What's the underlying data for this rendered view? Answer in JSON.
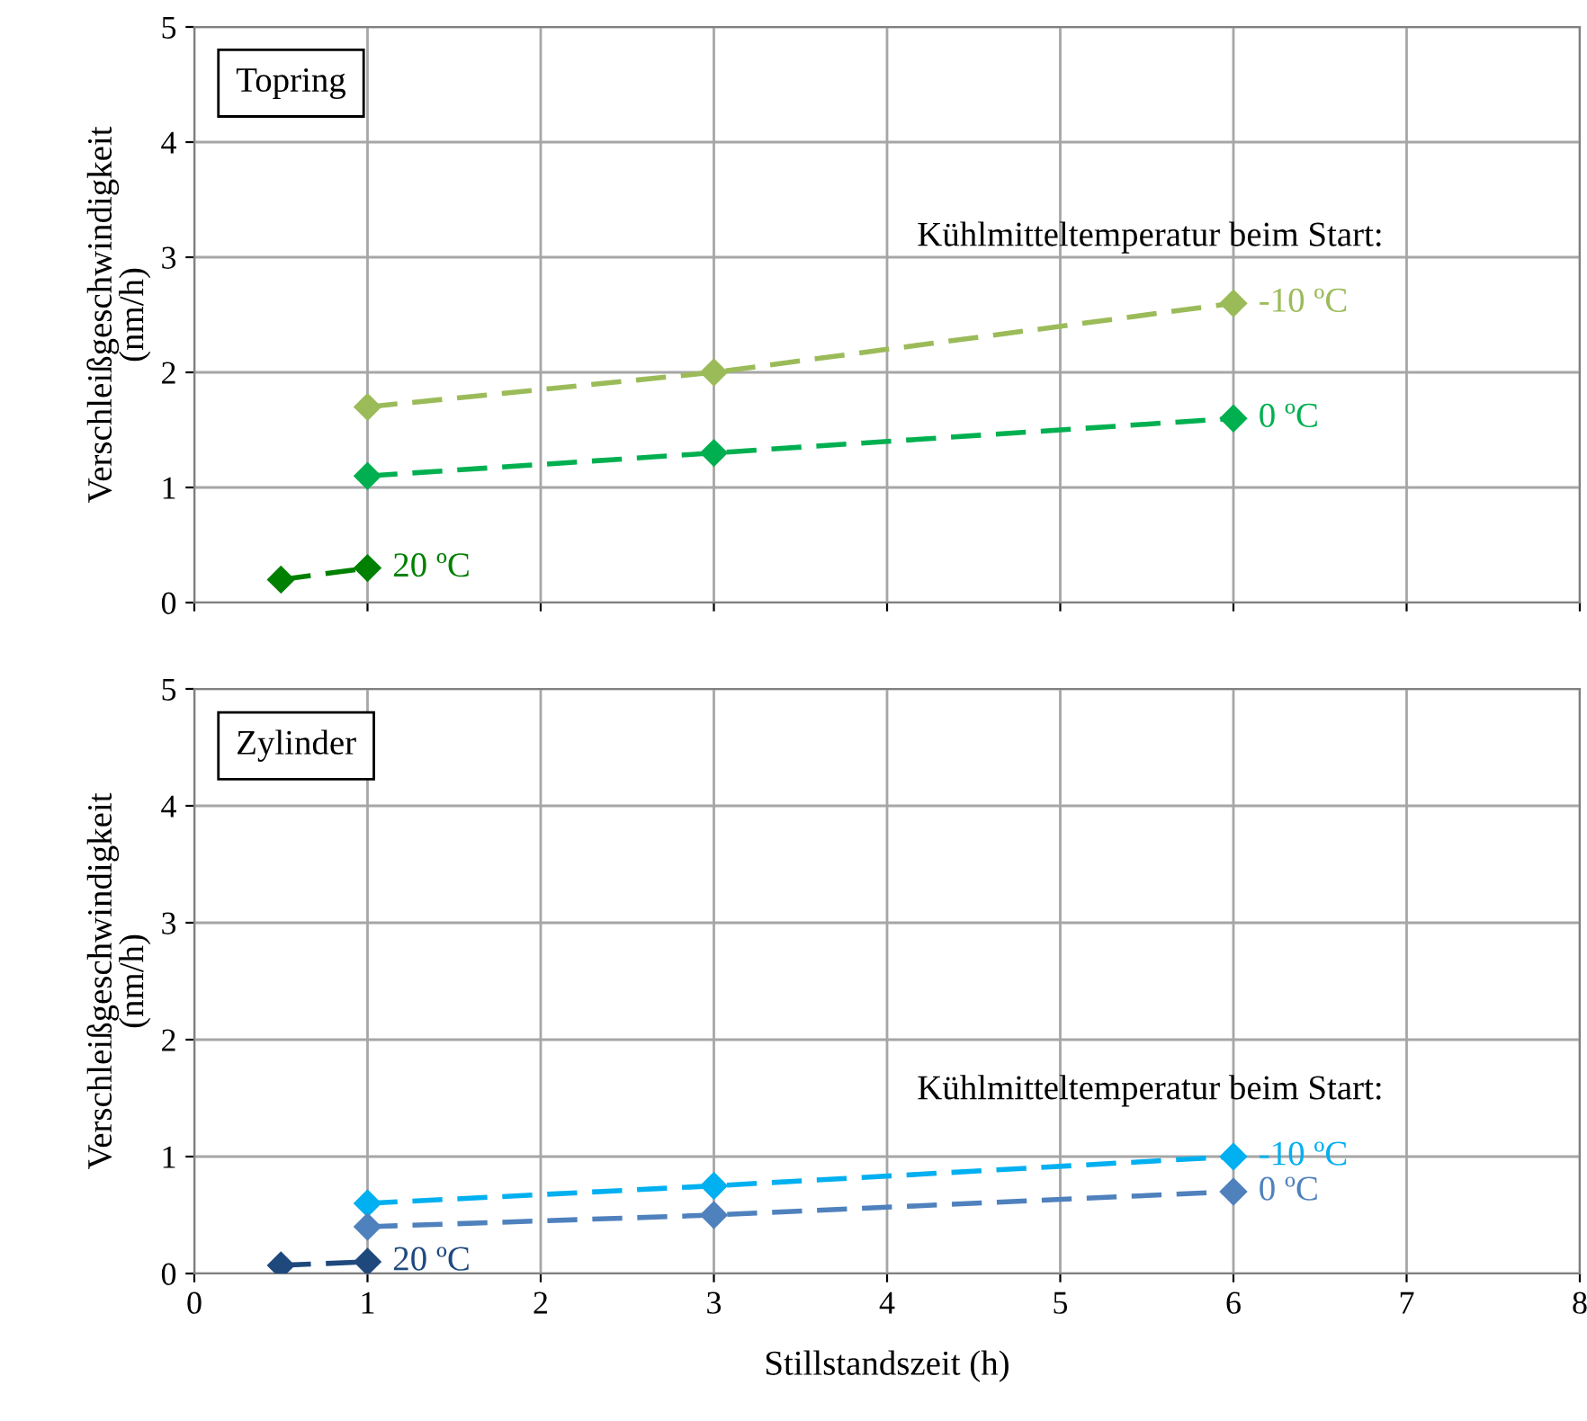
{
  "chart_data": [
    {
      "type": "line",
      "title": "Topring",
      "ylabel": "Verschleißgeschwindigkeit\n(nm/h)",
      "annotations": [
        "Kühlmitteltemperatur beim Start:"
      ],
      "xlim": [
        0,
        8
      ],
      "xticks": [
        0,
        1,
        2,
        3,
        4,
        5,
        6,
        7,
        8
      ],
      "ylim": [
        0,
        5
      ],
      "yticks": [
        0,
        1,
        2,
        3,
        4,
        5
      ],
      "grid": true,
      "marker": "diamond",
      "line_style": "dashed",
      "tick_labels": "y",
      "series": [
        {
          "name": "-10 ºC",
          "color": "#9bbb59",
          "x": [
            1,
            3,
            6
          ],
          "values": [
            1.7,
            2.0,
            2.6
          ]
        },
        {
          "name": "0 ºC",
          "color": "#00b050",
          "x": [
            1,
            3,
            6
          ],
          "values": [
            1.1,
            1.3,
            1.6
          ]
        },
        {
          "name": "20 ºC",
          "color": "#008000",
          "x": [
            0.5,
            1
          ],
          "values": [
            0.2,
            0.3
          ]
        }
      ]
    },
    {
      "type": "line",
      "title": "Zylinder",
      "ylabel": "Verschleißgeschwindigkeit\n(nm/h)",
      "xlabel": "Stillstandszeit (h)",
      "annotations": [
        "Kühlmitteltemperatur beim Start:"
      ],
      "xlim": [
        0,
        8
      ],
      "xticks": [
        0,
        1,
        2,
        3,
        4,
        5,
        6,
        7,
        8
      ],
      "ylim": [
        0,
        5
      ],
      "yticks": [
        0,
        1,
        2,
        3,
        4,
        5
      ],
      "grid": true,
      "marker": "diamond",
      "line_style": "dashed",
      "series": [
        {
          "name": "-10 ºC",
          "color": "#00b0f0",
          "x": [
            1,
            3,
            6
          ],
          "values": [
            0.6,
            0.75,
            1.0
          ]
        },
        {
          "name": "0 ºC",
          "color": "#4f81bd",
          "x": [
            1,
            3,
            6
          ],
          "values": [
            0.4,
            0.5,
            0.7
          ]
        },
        {
          "name": "20 ºC",
          "color": "#1f497d",
          "x": [
            0.5,
            1
          ],
          "values": [
            0.07,
            0.1
          ]
        }
      ]
    }
  ]
}
